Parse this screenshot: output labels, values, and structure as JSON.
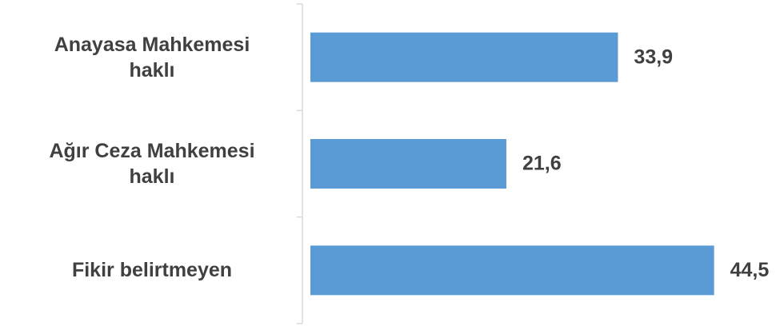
{
  "chart_data": {
    "type": "bar",
    "orientation": "horizontal",
    "categories": [
      "Anayasa Mahkemesi haklı",
      "Ağır Ceza Mahkemesi haklı",
      "Fikir belirtmeyen"
    ],
    "values": [
      33.9,
      21.6,
      44.5
    ],
    "value_labels": [
      "33,9",
      "21,6",
      "44,5"
    ],
    "color": "#5b9bd5"
  }
}
